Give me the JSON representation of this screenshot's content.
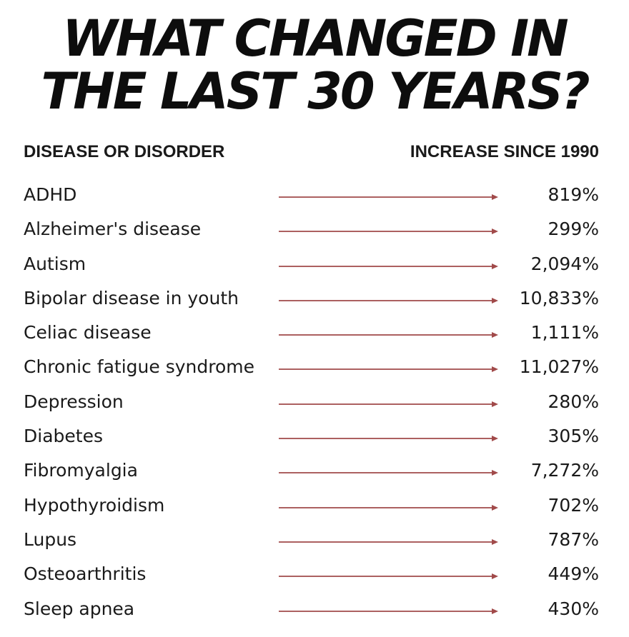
{
  "title": {
    "line1": "WHAT CHANGED IN",
    "line2": "THE LAST 30 YEARS?"
  },
  "headers": {
    "left": "DISEASE OR DISORDER",
    "right": "INCREASE SINCE 1990"
  },
  "arrow_color": "#a14a4a",
  "rows": [
    {
      "name": "ADHD",
      "increase": "819%"
    },
    {
      "name": "Alzheimer's disease",
      "increase": "299%"
    },
    {
      "name": "Autism",
      "increase": "2,094%"
    },
    {
      "name": "Bipolar disease in youth",
      "increase": "10,833%"
    },
    {
      "name": "Celiac disease",
      "increase": "1,111%"
    },
    {
      "name": "Chronic fatigue syndrome",
      "increase": "11,027%"
    },
    {
      "name": "Depression",
      "increase": "280%"
    },
    {
      "name": "Diabetes",
      "increase": "305%"
    },
    {
      "name": "Fibromyalgia",
      "increase": "7,272%"
    },
    {
      "name": "Hypothyroidism",
      "increase": "702%"
    },
    {
      "name": "Lupus",
      "increase": "787%"
    },
    {
      "name": "Osteoarthritis",
      "increase": "449%"
    },
    {
      "name": "Sleep apnea",
      "increase": "430%"
    }
  ]
}
